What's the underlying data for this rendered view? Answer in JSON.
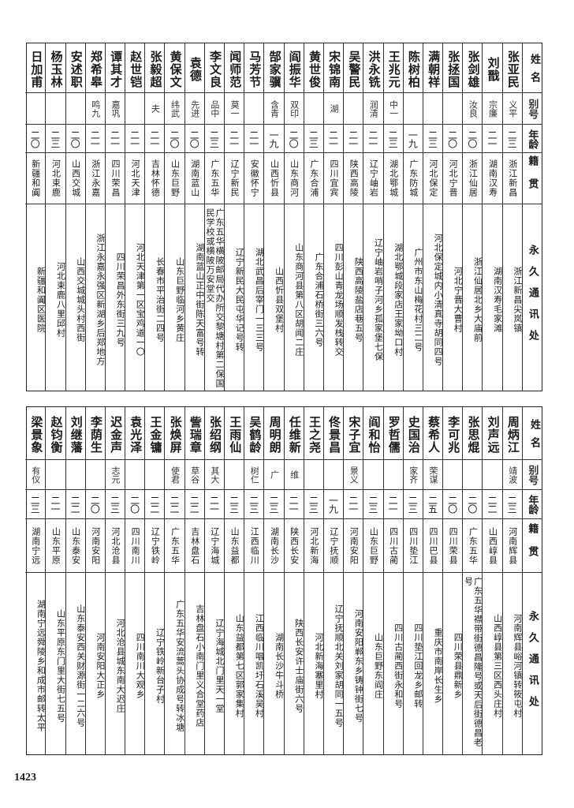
{
  "headers": {
    "name": "姓名",
    "alias": "别号",
    "age": "年龄",
    "native": "籍贯",
    "address": "永久通讯处"
  },
  "top_table": [
    {
      "name": "张亚民",
      "alias": "义平",
      "age": "二三",
      "native": "浙江新昌",
      "address": "浙江新昌尖岚镇"
    },
    {
      "name": "刘戬",
      "alias": "宗廉",
      "age": "二一",
      "native": "湖南汉寿",
      "address": "湖南汉寿毛家滩"
    },
    {
      "name": "张剑雄",
      "alias": "汝良",
      "age": "二〇",
      "native": "浙江仙居",
      "address": "浙江仙居北乡大庙前"
    },
    {
      "name": "张拯国",
      "alias": "",
      "age": "二〇",
      "native": "河北宁晋",
      "address": "河北宁晋大曹村"
    },
    {
      "name": "满朝祥",
      "alias": "",
      "age": "二三",
      "native": "河北保定",
      "address": "河北保定城内小清真寺胡同四号"
    },
    {
      "name": "陈树柏",
      "alias": "",
      "age": "一九",
      "native": "广东防城",
      "address": "广州市东山梅花村三二号"
    },
    {
      "name": "王兆元",
      "alias": "中一",
      "age": "二三",
      "native": "湖北鄂城",
      "address": "湖北鄂城段家店王家坳口村"
    },
    {
      "name": "洪永铣",
      "alias": "润清",
      "age": "二一",
      "native": "辽宁岫岩",
      "address": "辽宁岫岩哨子河乡孤家堡七保"
    },
    {
      "name": "吴警民",
      "alias": "",
      "age": "二一",
      "native": "陕西高陵",
      "address": "陕西高陵盐店巷五号"
    },
    {
      "name": "宋锦南",
      "alias": "湖",
      "age": "二一",
      "native": "四川宜宾",
      "address": "四川彭山青龙场顺发栈转交"
    },
    {
      "name": "黄世俊",
      "alias": "",
      "age": "二三",
      "native": "广东合浦",
      "address": "广东合浦石桥街三六号"
    },
    {
      "name": "阎振华",
      "alias": "双印",
      "age": "二〇",
      "native": "山东商河",
      "address": "山东商河县第八区胡闻二庄"
    },
    {
      "name": "郜家骥",
      "alias": "含青",
      "age": "一九",
      "native": "山西忻县",
      "address": "山西忻县双堡村"
    },
    {
      "name": "马芳节",
      "alias": "",
      "age": "二一",
      "native": "安徽怀宁",
      "address": "湖北武昌后宰门一三三号"
    },
    {
      "name": "闻师范",
      "alias": "莫一",
      "age": "二一",
      "native": "辽宁新民",
      "address": "辽宁新民大民屯华记号转"
    },
    {
      "name": "李文良",
      "alias": "品中",
      "age": "二三",
      "native": "广东五华",
      "address": "广东五华横陂邮局代办所交黎塘村第二保国民学校或横陂万安堂交"
    },
    {
      "name": "袁德",
      "alias": "先进",
      "age": "二〇",
      "native": "湖南蓝山",
      "address": "湖南蓝山正中街陈天富号转"
    },
    {
      "name": "黄保文",
      "alias": "纬武",
      "age": "二〇",
      "native": "山东巨野",
      "address": "山东巨野临河乡黄庄"
    },
    {
      "name": "张毅超",
      "alias": "夫",
      "age": "二一",
      "native": "吉林怀德",
      "address": "长春市平治街二四号"
    },
    {
      "name": "赵世铠",
      "alias": "",
      "age": "二一",
      "native": "河北天津",
      "address": "河北天津第一区宝鸡道一〇"
    },
    {
      "name": "谭其才",
      "alias": "嘉巩",
      "age": "二一",
      "native": "四川荣昌",
      "address": "四川荣昌外东街三九号"
    },
    {
      "name": "郑希皋",
      "alias": "鸣九",
      "age": "二一",
      "native": "浙江永嘉",
      "address": "浙江永嘉永强区新湖乡后郑地方"
    },
    {
      "name": "安述职",
      "alias": "",
      "age": "二〇",
      "native": "山西交城",
      "address": "山西交城城头村西街"
    },
    {
      "name": "杨玉林",
      "alias": "",
      "age": "二三",
      "native": "河北束鹿",
      "address": "河北束鹿八里邱村"
    },
    {
      "name": "日加甫",
      "alias": "",
      "age": "二〇",
      "native": "新疆和阗",
      "address": "新疆和阗区医院"
    }
  ],
  "bottom_table": [
    {
      "name": "周炳江",
      "alias": "靖波",
      "age": "二三",
      "native": "河南辉县",
      "address": "河南辉县峪河镇转筱屯村"
    },
    {
      "name": "刘声远",
      "alias": "",
      "age": "二二",
      "native": "山西崞县",
      "address": "山西崞县第三区西头庄村"
    },
    {
      "name": "张思焜",
      "alias": "",
      "age": "二〇",
      "native": "广东五华",
      "address": "广东五华襟带街德昌隆号或天后街德昌老号"
    },
    {
      "name": "李可兆",
      "alias": "",
      "age": "二〇",
      "native": "四川荣县",
      "address": "四川荣县鼎新乡"
    },
    {
      "name": "蔡希人",
      "alias": "荣谋",
      "age": "二五",
      "native": "四川巴县",
      "address": "重庆市南岸长生乡"
    },
    {
      "name": "史国治",
      "alias": "家齐",
      "age": "二三",
      "native": "四川垫江",
      "address": "四川垫江回龙乡邮转"
    },
    {
      "name": "罗哲儒",
      "alias": "",
      "age": "二一",
      "native": "四川古蔺",
      "address": "四川古蔺西街永和号"
    },
    {
      "name": "阎和怡",
      "alias": "",
      "age": "二三",
      "native": "山东巨野",
      "address": "山东巨野东阎庄"
    },
    {
      "name": "宋子宜",
      "alias": "景义",
      "age": "二一",
      "native": "河南安阳",
      "address": "河南安阳郸东乡铸钟街七号"
    },
    {
      "name": "佟景昌",
      "alias": "",
      "age": "一九",
      "native": "辽宁抚顺",
      "address": "辽宁抚顺北关刘家胡同一五号"
    },
    {
      "name": "王之尧",
      "alias": "",
      "age": "二三",
      "native": "河北新海",
      "address": "河北新海塞里村"
    },
    {
      "name": "任维新",
      "alias": "维",
      "age": "二一",
      "native": "陕西长安",
      "address": "陕西长安许士庙街六号"
    },
    {
      "name": "周明朗",
      "alias": "广",
      "age": "二三",
      "native": "湖南长沙",
      "address": "湖南长沙牛斗桥"
    },
    {
      "name": "吴鹤龄",
      "alias": "树仁",
      "age": "二三",
      "native": "江西临川",
      "address": "江西临川唱凯圩石溪吴村"
    },
    {
      "name": "王雨仙",
      "alias": "",
      "age": "二三",
      "native": "山东益都",
      "address": "山东益都第七区郭家集村"
    },
    {
      "name": "张绍纲",
      "alias": "其大",
      "age": "二一",
      "native": "辽宁海城",
      "address": "辽宁海城北门里天一堂"
    },
    {
      "name": "訾瑞章",
      "alias": "草谷",
      "age": "二二",
      "native": "吉林盘石",
      "address": "吉林盘石小南门里义合堂药店"
    },
    {
      "name": "张焕屏",
      "alias": "使君",
      "age": "二二",
      "native": "广东五华",
      "address": "广东五华安流蒿头协成号转冰塘"
    },
    {
      "name": "王金镛",
      "alias": "",
      "age": "二二",
      "native": "辽宁铁岭",
      "address": "辽宁铁岭新台子村"
    },
    {
      "name": "袁光泽",
      "alias": "",
      "age": "二〇",
      "native": "四川南川",
      "address": "四川南川大观乡"
    },
    {
      "name": "迟金声",
      "alias": "志元",
      "age": "二三",
      "native": "河北沧县",
      "address": "河北沧县城东南大迟庄"
    },
    {
      "name": "李荫生",
      "alias": "",
      "age": "二〇",
      "native": "河南安阳",
      "address": "河南安阳大正乡"
    },
    {
      "name": "刘继藩",
      "alias": "",
      "age": "二二",
      "native": "山东泰安",
      "address": "山东泰安西关财源街一二六号"
    },
    {
      "name": "赵钧衡",
      "alias": "",
      "age": "二一",
      "native": "山东平原",
      "address": "山东平原东门里大街七五号"
    },
    {
      "name": "梁景象",
      "alias": "有仪",
      "age": "二三",
      "native": "湖南宁远",
      "address": "湖南宁远舜陵乡和成市邮转太平"
    }
  ],
  "page_number": "1423"
}
